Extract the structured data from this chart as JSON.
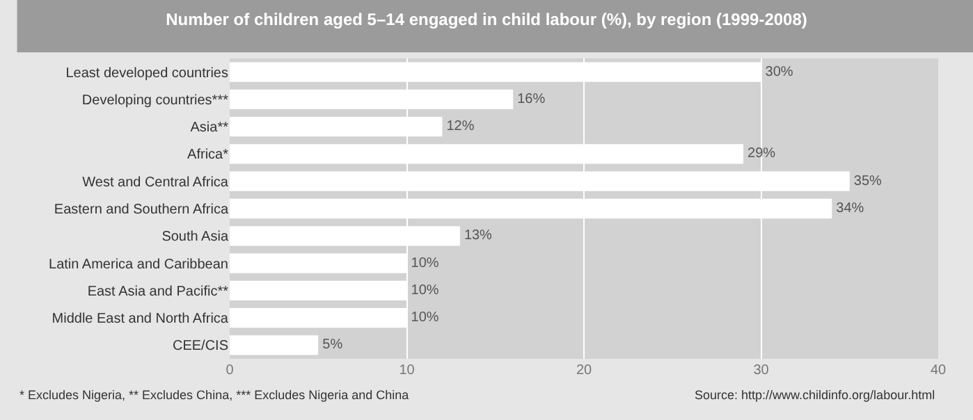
{
  "chart_data": {
    "type": "bar",
    "orientation": "horizontal",
    "title": "Number of children aged 5–14 engaged in child labour (%), by region (1999-2008)",
    "categories": [
      "Least developed countries",
      "Developing countries***",
      "Asia**",
      "Africa*",
      "West and Central Africa",
      "Eastern and Southern Africa",
      "South Asia",
      "Latin America and Caribbean",
      "East Asia and Pacific**",
      "Middle East and North Africa",
      "CEE/CIS"
    ],
    "values": [
      30,
      16,
      12,
      29,
      35,
      34,
      13,
      10,
      10,
      10,
      5
    ],
    "value_labels": [
      "30%",
      "16%",
      "12%",
      "29%",
      "35%",
      "34%",
      "13%",
      "10%",
      "10%",
      "10%",
      "5%"
    ],
    "color": "#ffffff",
    "xlim": [
      0,
      40
    ],
    "xticks": [
      0,
      10,
      20,
      30,
      40
    ],
    "grid": "x",
    "legend": false,
    "annotations": [
      "* Excludes Nigeria, ** Excludes China, *** Excludes Nigeria and China",
      "Source: http://www.childinfo.org/labour.html"
    ]
  }
}
